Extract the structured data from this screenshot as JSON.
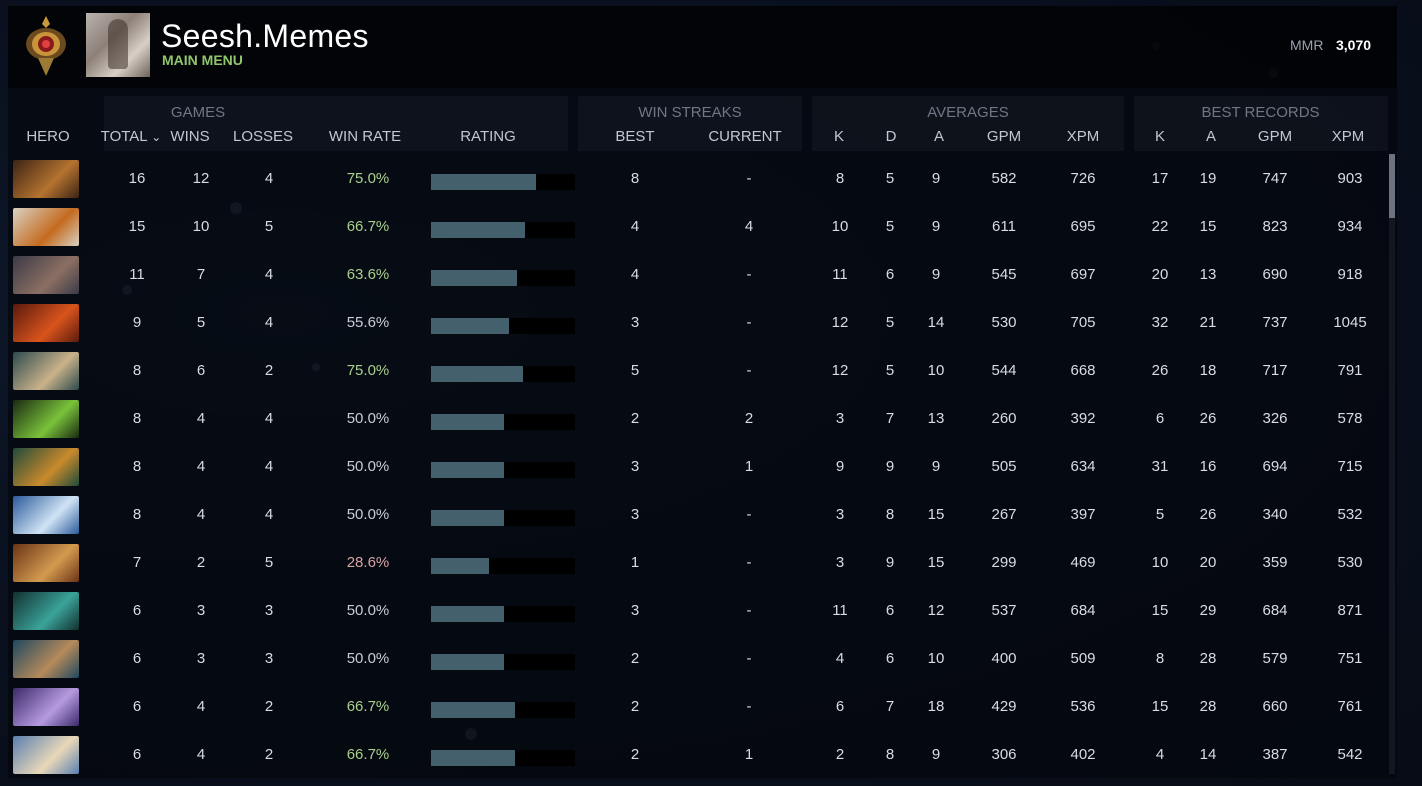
{
  "header": {
    "player_name": "Seesh.Memes",
    "main_menu_label": "MAIN MENU",
    "mmr_label": "MMR",
    "mmr_value": "3,070",
    "medal_icon": "immortal-medal-icon",
    "avatar": "player-avatar"
  },
  "groups": {
    "games": "GAMES",
    "win_streaks": "WIN STREAKS",
    "averages": "AVERAGES",
    "best_records": "BEST RECORDS"
  },
  "columns": {
    "hero": "HERO",
    "total": "TOTAL",
    "sort_indicator": "⌄",
    "wins": "WINS",
    "losses": "LOSSES",
    "win_rate": "WIN RATE",
    "rating": "RATING",
    "best": "BEST",
    "current": "CURRENT",
    "avg_k": "K",
    "avg_d": "D",
    "avg_a": "A",
    "avg_gpm": "GPM",
    "avg_xpm": "XPM",
    "best_k": "K",
    "best_a": "A",
    "best_gpm": "GPM",
    "best_xpm": "XPM"
  },
  "colors": {
    "rate_good": "#a9d08e",
    "rate_neutral": "#c9ced6",
    "rate_bad": "#d9a3a3",
    "bar_fill": "#44606d",
    "name_green": "#8fc56b"
  },
  "rows": [
    {
      "hero_colors": [
        "#3b2414",
        "#b5732f"
      ],
      "total": "16",
      "wins": "12",
      "losses": "4",
      "win_rate": "75.0%",
      "rating": 0.73,
      "rate_class": "good",
      "best": "8",
      "current": "-",
      "k": "8",
      "d": "5",
      "a": "9",
      "gpm": "582",
      "xpm": "726",
      "bk": "17",
      "ba": "19",
      "bgpm": "747",
      "bxpm": "903"
    },
    {
      "hero_colors": [
        "#d9d2c2",
        "#c46a1f"
      ],
      "total": "15",
      "wins": "10",
      "losses": "5",
      "win_rate": "66.7%",
      "rating": 0.65,
      "rate_class": "good",
      "best": "4",
      "current": "4",
      "k": "10",
      "d": "5",
      "a": "9",
      "gpm": "611",
      "xpm": "695",
      "bk": "22",
      "ba": "15",
      "bgpm": "823",
      "bxpm": "934"
    },
    {
      "hero_colors": [
        "#3b3a48",
        "#8c6f63"
      ],
      "total": "11",
      "wins": "7",
      "losses": "4",
      "win_rate": "63.6%",
      "rating": 0.6,
      "rate_class": "good",
      "best": "4",
      "current": "-",
      "k": "11",
      "d": "6",
      "a": "9",
      "gpm": "545",
      "xpm": "697",
      "bk": "20",
      "ba": "13",
      "bgpm": "690",
      "bxpm": "918"
    },
    {
      "hero_colors": [
        "#5a1a0e",
        "#d9541c"
      ],
      "total": "9",
      "wins": "5",
      "losses": "4",
      "win_rate": "55.6%",
      "rating": 0.54,
      "rate_class": "neutral",
      "best": "3",
      "current": "-",
      "k": "12",
      "d": "5",
      "a": "14",
      "gpm": "530",
      "xpm": "705",
      "bk": "32",
      "ba": "21",
      "bgpm": "737",
      "bxpm": "1045"
    },
    {
      "hero_colors": [
        "#2d4a4d",
        "#c9b28a"
      ],
      "total": "8",
      "wins": "6",
      "losses": "2",
      "win_rate": "75.0%",
      "rating": 0.64,
      "rate_class": "good",
      "best": "5",
      "current": "-",
      "k": "12",
      "d": "5",
      "a": "10",
      "gpm": "544",
      "xpm": "668",
      "bk": "26",
      "ba": "18",
      "bgpm": "717",
      "bxpm": "791"
    },
    {
      "hero_colors": [
        "#1a2a12",
        "#7ac23a"
      ],
      "total": "8",
      "wins": "4",
      "losses": "4",
      "win_rate": "50.0%",
      "rating": 0.51,
      "rate_class": "neutral",
      "best": "2",
      "current": "2",
      "k": "3",
      "d": "7",
      "a": "13",
      "gpm": "260",
      "xpm": "392",
      "bk": "6",
      "ba": "26",
      "bgpm": "326",
      "bxpm": "578"
    },
    {
      "hero_colors": [
        "#1f4a3a",
        "#c98a2c"
      ],
      "total": "8",
      "wins": "4",
      "losses": "4",
      "win_rate": "50.0%",
      "rating": 0.51,
      "rate_class": "neutral",
      "best": "3",
      "current": "1",
      "k": "9",
      "d": "9",
      "a": "9",
      "gpm": "505",
      "xpm": "634",
      "bk": "31",
      "ba": "16",
      "bgpm": "694",
      "bxpm": "715"
    },
    {
      "hero_colors": [
        "#2b5a9a",
        "#cfe3f5"
      ],
      "total": "8",
      "wins": "4",
      "losses": "4",
      "win_rate": "50.0%",
      "rating": 0.51,
      "rate_class": "neutral",
      "best": "3",
      "current": "-",
      "k": "3",
      "d": "8",
      "a": "15",
      "gpm": "267",
      "xpm": "397",
      "bk": "5",
      "ba": "26",
      "bgpm": "340",
      "bxpm": "532"
    },
    {
      "hero_colors": [
        "#6a3416",
        "#d39a4f"
      ],
      "total": "7",
      "wins": "2",
      "losses": "5",
      "win_rate": "28.6%",
      "rating": 0.4,
      "rate_class": "bad",
      "best": "1",
      "current": "-",
      "k": "3",
      "d": "9",
      "a": "15",
      "gpm": "299",
      "xpm": "469",
      "bk": "10",
      "ba": "20",
      "bgpm": "359",
      "bxpm": "530"
    },
    {
      "hero_colors": [
        "#12302e",
        "#3aa39a"
      ],
      "total": "6",
      "wins": "3",
      "losses": "3",
      "win_rate": "50.0%",
      "rating": 0.51,
      "rate_class": "neutral",
      "best": "3",
      "current": "-",
      "k": "11",
      "d": "6",
      "a": "12",
      "gpm": "537",
      "xpm": "684",
      "bk": "15",
      "ba": "29",
      "bgpm": "684",
      "bxpm": "871"
    },
    {
      "hero_colors": [
        "#1f4860",
        "#b58a5a"
      ],
      "total": "6",
      "wins": "3",
      "losses": "3",
      "win_rate": "50.0%",
      "rating": 0.51,
      "rate_class": "neutral",
      "best": "2",
      "current": "-",
      "k": "4",
      "d": "6",
      "a": "10",
      "gpm": "400",
      "xpm": "509",
      "bk": "8",
      "ba": "28",
      "bgpm": "579",
      "bxpm": "751"
    },
    {
      "hero_colors": [
        "#3a2a6a",
        "#b69ae0"
      ],
      "total": "6",
      "wins": "4",
      "losses": "2",
      "win_rate": "66.7%",
      "rating": 0.58,
      "rate_class": "good",
      "best": "2",
      "current": "-",
      "k": "6",
      "d": "7",
      "a": "18",
      "gpm": "429",
      "xpm": "536",
      "bk": "15",
      "ba": "28",
      "bgpm": "660",
      "bxpm": "761"
    },
    {
      "hero_colors": [
        "#5a7fb0",
        "#e8d8b8"
      ],
      "total": "6",
      "wins": "4",
      "losses": "2",
      "win_rate": "66.7%",
      "rating": 0.58,
      "rate_class": "good",
      "best": "2",
      "current": "1",
      "k": "2",
      "d": "8",
      "a": "9",
      "gpm": "306",
      "xpm": "402",
      "bk": "4",
      "ba": "14",
      "bgpm": "387",
      "bxpm": "542"
    }
  ]
}
